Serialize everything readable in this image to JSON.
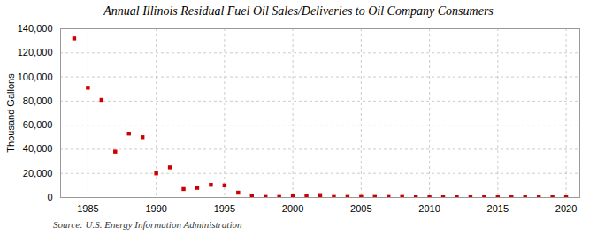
{
  "chart_data": {
    "type": "scatter",
    "title": "Annual Illinois Residual Fuel Oil Sales/Deliveries to Oil Company Consumers",
    "ylabel": "Thousand Gallons",
    "annotations": [
      "Source: U.S. Energy Information Administration"
    ],
    "x": [
      1984,
      1985,
      1986,
      1987,
      1988,
      1989,
      1990,
      1991,
      1992,
      1993,
      1994,
      1995,
      1996,
      1997,
      1998,
      1999,
      2000,
      2001,
      2002,
      2003,
      2004,
      2005,
      2006,
      2007,
      2008,
      2009,
      2010,
      2011,
      2012,
      2013,
      2014,
      2015,
      2016,
      2017,
      2018,
      2019,
      2020
    ],
    "values": [
      132000,
      91000,
      81000,
      38000,
      53000,
      50000,
      20000,
      25000,
      7000,
      8000,
      10500,
      10000,
      4000,
      1500,
      500,
      500,
      1500,
      1000,
      2000,
      500,
      500,
      500,
      500,
      500,
      500,
      200,
      200,
      200,
      200,
      200,
      200,
      200,
      200,
      200,
      200,
      200,
      200
    ],
    "color": "#cc0000",
    "marker": "square",
    "xlim": [
      1983,
      2021
    ],
    "xticks": [
      1985,
      1990,
      1995,
      2000,
      2005,
      2010,
      2015,
      2020
    ],
    "ylim": [
      0,
      140000
    ],
    "yticks": [
      0,
      {
        "value": 20000,
        "label": "20,000"
      },
      {
        "value": 40000,
        "label": "40,000"
      },
      {
        "value": 60000,
        "label": "60,000"
      },
      {
        "value": 80000,
        "label": "80,000"
      },
      {
        "value": 100000,
        "label": "100,000"
      },
      {
        "value": 120000,
        "label": "120,000"
      },
      {
        "value": 140000,
        "label": "140,000"
      }
    ],
    "grid": true
  }
}
